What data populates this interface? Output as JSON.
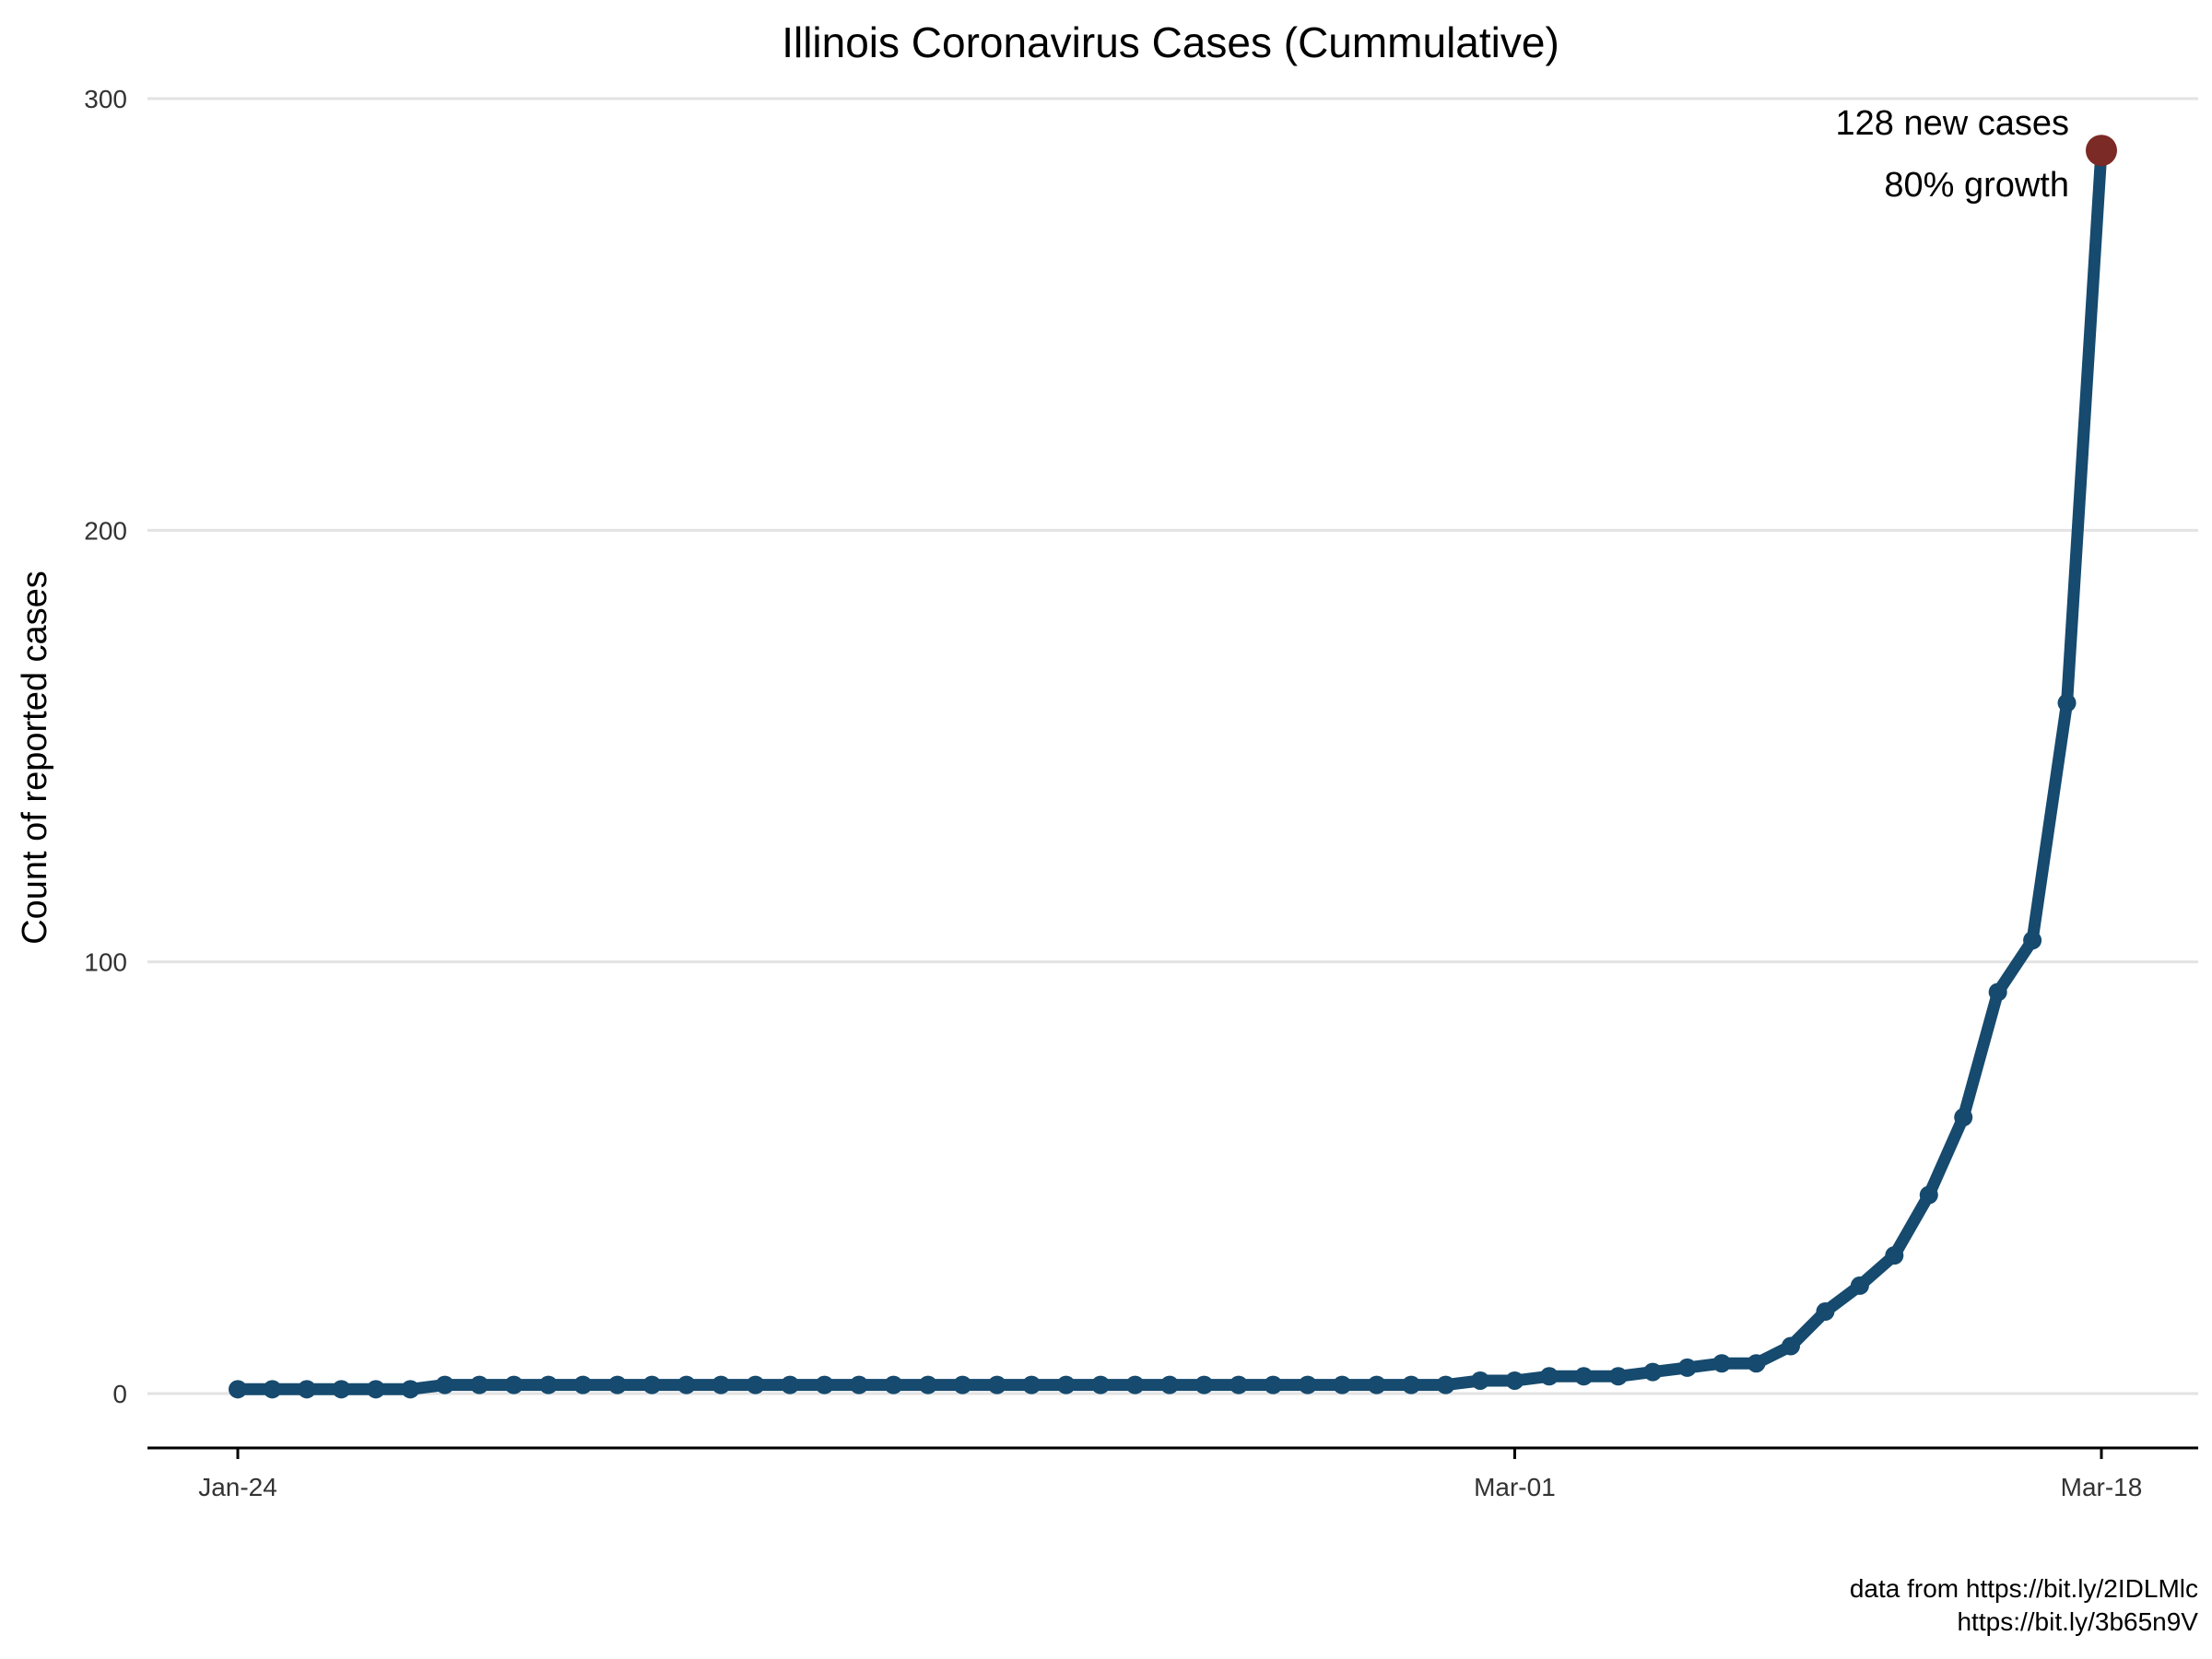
{
  "chart_data": {
    "type": "line",
    "title": "Illinois Coronavirus Cases (Cummulative)",
    "xlabel": "",
    "ylabel": "Count of reported cases",
    "x_start": "2020-01-24",
    "x_end": "2020-03-18",
    "x_ticks": [
      {
        "date": "2020-01-24",
        "label": "Jan-24"
      },
      {
        "date": "2020-03-01",
        "label": "Mar-01"
      },
      {
        "date": "2020-03-18",
        "label": "Mar-18"
      }
    ],
    "ylim": [
      -12,
      301
    ],
    "y_ticks": [
      0,
      100,
      200,
      300
    ],
    "grid": "horizontal",
    "line_color": "#164a6e",
    "highlight_color": "#7b2a25",
    "series": [
      {
        "values": [
          1,
          1,
          1,
          1,
          1,
          1,
          2,
          2,
          2,
          2,
          2,
          2,
          2,
          2,
          2,
          2,
          2,
          2,
          2,
          2,
          2,
          2,
          2,
          2,
          2,
          2,
          2,
          2,
          2,
          2,
          2,
          2,
          2,
          2,
          2,
          2,
          3,
          3,
          4,
          4,
          4,
          5,
          6,
          7,
          7,
          11,
          19,
          25,
          32,
          46,
          64,
          93,
          105,
          160,
          288
        ]
      }
    ],
    "annotations": [
      "128 new cases",
      "80% growth"
    ],
    "caption": [
      "data from https://bit.ly/2IDLMlc",
      "https://bit.ly/3b65n9V"
    ]
  }
}
